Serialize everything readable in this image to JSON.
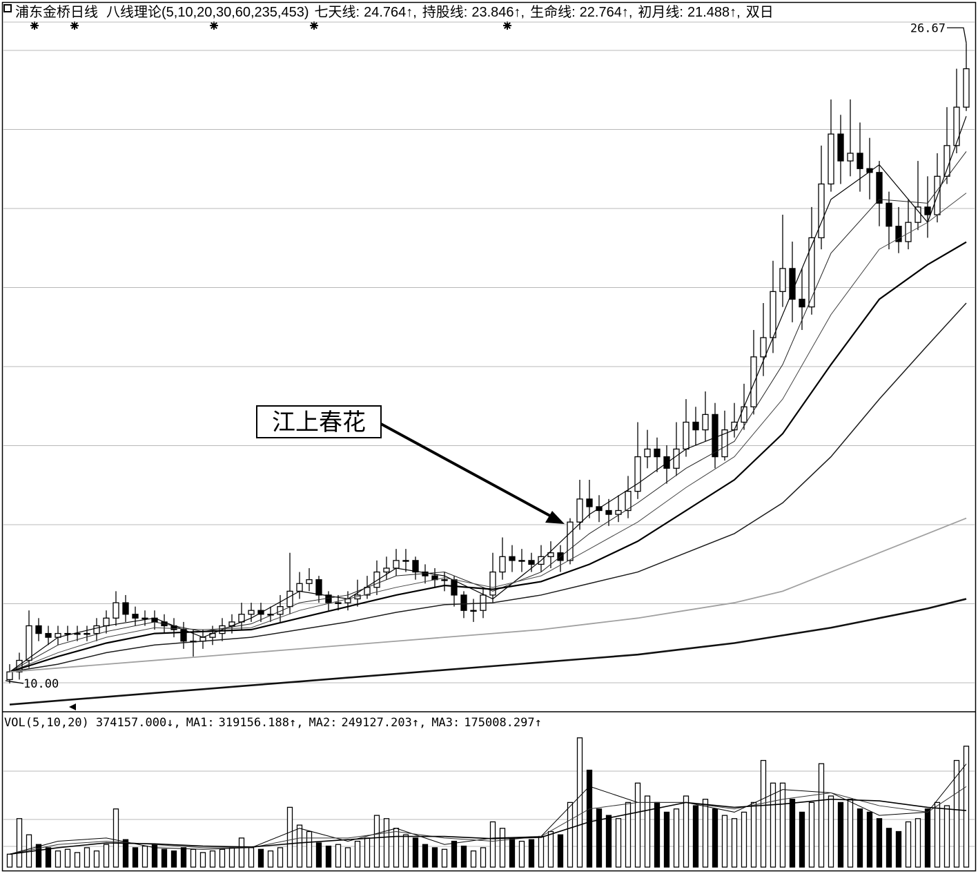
{
  "chart_data": {
    "type": "candlestick",
    "title": "浦东金桥日线",
    "indicator": "八线理论(5,10,20,30,60,235,453)",
    "item_separator": ",",
    "ylim": [
      9.28,
      27.07
    ],
    "grid": true,
    "candles": {
      "open": [
        10.1,
        10.3,
        10.6,
        11.5,
        11.3,
        11.2,
        11.3,
        11.3,
        11.3,
        11.3,
        11.5,
        11.7,
        12.1,
        11.8,
        11.7,
        11.7,
        11.6,
        11.5,
        11.4,
        11.1,
        11.1,
        11.2,
        11.3,
        11.5,
        11.6,
        11.8,
        11.9,
        11.8,
        11.8,
        12.0,
        12.4,
        12.6,
        12.7,
        12.3,
        12.1,
        12.1,
        12.2,
        12.3,
        12.5,
        12.9,
        13.0,
        13.2,
        13.2,
        12.9,
        12.8,
        12.7,
        12.7,
        12.3,
        11.9,
        11.9,
        12.3,
        12.9,
        13.3,
        13.2,
        13.2,
        13.1,
        13.3,
        13.4,
        13.2,
        14.2,
        14.8,
        14.6,
        14.5,
        14.4,
        14.5,
        15.0,
        15.9,
        16.1,
        15.9,
        15.6,
        16.1,
        16.8,
        16.6,
        17.0,
        15.9,
        16.6,
        16.8,
        17.2,
        18.5,
        19.0,
        20.2,
        20.8,
        20.0,
        19.8,
        21.6,
        23.0,
        24.3,
        23.6,
        23.8,
        23.4,
        23.3,
        22.5,
        21.9,
        21.5,
        22.0,
        22.4,
        22.2,
        23.2,
        24.0,
        25.0
      ],
      "high": [
        10.5,
        10.8,
        11.9,
        11.7,
        11.5,
        11.5,
        11.5,
        11.5,
        11.5,
        11.7,
        11.9,
        12.4,
        12.3,
        12.0,
        11.9,
        11.9,
        11.8,
        11.7,
        11.6,
        11.4,
        11.4,
        11.5,
        11.7,
        11.8,
        12.1,
        12.1,
        12.1,
        12.0,
        12.3,
        13.4,
        12.9,
        13.0,
        12.8,
        12.4,
        12.3,
        12.4,
        12.7,
        12.8,
        13.2,
        13.3,
        13.5,
        13.5,
        13.3,
        13.1,
        13.0,
        12.9,
        12.8,
        12.4,
        12.2,
        12.5,
        13.4,
        13.8,
        13.6,
        13.5,
        13.4,
        13.6,
        13.7,
        13.6,
        14.3,
        15.3,
        15.3,
        14.9,
        14.8,
        14.9,
        15.4,
        16.8,
        16.6,
        16.4,
        16.2,
        16.8,
        17.4,
        17.2,
        17.6,
        17.3,
        17.1,
        17.3,
        17.8,
        19.2,
        19.9,
        21.0,
        22.2,
        21.5,
        20.8,
        22.4,
        24.0,
        25.2,
        24.8,
        25.2,
        24.6,
        24.2,
        23.6,
        22.8,
        22.4,
        22.6,
        23.6,
        23.2,
        23.8,
        25.0,
        26.0,
        26.67
      ],
      "low": [
        10.0,
        10.1,
        10.4,
        11.1,
        11.0,
        11.0,
        11.1,
        11.1,
        11.1,
        11.1,
        11.3,
        11.5,
        11.6,
        11.5,
        11.5,
        11.4,
        11.3,
        11.2,
        10.9,
        10.7,
        10.9,
        11.0,
        11.1,
        11.3,
        11.4,
        11.6,
        11.6,
        11.6,
        11.6,
        11.8,
        12.2,
        12.4,
        12.1,
        11.9,
        11.9,
        11.9,
        12.0,
        12.2,
        12.3,
        12.7,
        12.8,
        12.9,
        12.7,
        12.6,
        12.5,
        12.4,
        12.0,
        11.7,
        11.6,
        11.7,
        12.1,
        12.7,
        12.9,
        12.9,
        12.9,
        12.9,
        13.0,
        12.9,
        13.1,
        14.0,
        14.3,
        14.2,
        14.1,
        14.2,
        14.3,
        14.8,
        15.6,
        15.5,
        15.2,
        15.4,
        15.9,
        16.2,
        16.3,
        15.6,
        15.8,
        16.4,
        16.6,
        17.0,
        18.0,
        18.6,
        19.8,
        19.4,
        19.2,
        19.6,
        21.3,
        22.8,
        23.0,
        23.2,
        22.8,
        22.6,
        21.9,
        21.3,
        21.2,
        21.3,
        21.8,
        21.6,
        22.0,
        23.0,
        23.8,
        24.9
      ],
      "close": [
        10.3,
        10.6,
        11.5,
        11.3,
        11.2,
        11.3,
        11.3,
        11.3,
        11.3,
        11.5,
        11.7,
        12.1,
        11.8,
        11.7,
        11.7,
        11.6,
        11.5,
        11.4,
        11.1,
        11.1,
        11.2,
        11.3,
        11.5,
        11.6,
        11.8,
        11.9,
        11.8,
        11.8,
        12.0,
        12.4,
        12.6,
        12.7,
        12.3,
        12.1,
        12.1,
        12.2,
        12.3,
        12.5,
        12.9,
        13.0,
        13.2,
        13.2,
        12.9,
        12.8,
        12.7,
        12.7,
        12.3,
        11.9,
        11.9,
        12.3,
        12.9,
        13.3,
        13.2,
        13.2,
        13.1,
        13.3,
        13.4,
        13.2,
        14.2,
        14.8,
        14.6,
        14.5,
        14.4,
        14.5,
        15.0,
        15.9,
        16.1,
        15.9,
        15.6,
        16.1,
        16.8,
        16.6,
        17.0,
        15.9,
        16.6,
        16.8,
        17.2,
        18.5,
        19.0,
        20.2,
        20.8,
        20.0,
        19.8,
        21.6,
        23.0,
        24.3,
        23.6,
        23.8,
        23.4,
        23.3,
        22.5,
        21.9,
        21.5,
        22.0,
        22.4,
        22.2,
        23.2,
        24.0,
        25.0,
        26.0
      ]
    },
    "ma_x": [
      0,
      5,
      10,
      15,
      20,
      25,
      30,
      35,
      40,
      45,
      50,
      55,
      60,
      65,
      70,
      75,
      80,
      85,
      90,
      95,
      99
    ],
    "series": [
      {
        "name": "七天线:",
        "trend": "↑",
        "color": "#000000",
        "values": [
          10.3,
          11.2,
          11.5,
          11.7,
          11.2,
          11.7,
          12.4,
          12.2,
          13.0,
          12.8,
          12.2,
          13.2,
          14.4,
          15.2,
          16.1,
          16.6,
          19.6,
          22.6,
          23.5,
          22.0,
          24.764
        ]
      },
      {
        "name": "持股线:",
        "trend": "↑",
        "color": "#222222",
        "values": [
          10.3,
          11.0,
          11.35,
          11.6,
          11.35,
          11.55,
          12.1,
          12.3,
          12.8,
          12.9,
          12.4,
          12.9,
          13.9,
          14.7,
          15.6,
          16.3,
          18.3,
          21.2,
          22.6,
          22.5,
          23.846
        ]
      },
      {
        "name": "生命线:",
        "trend": "↑",
        "color": "#444444",
        "values": [
          10.3,
          10.8,
          11.2,
          11.45,
          11.4,
          11.45,
          11.9,
          12.2,
          12.5,
          12.75,
          12.5,
          12.8,
          13.5,
          14.2,
          15.1,
          15.9,
          17.4,
          19.6,
          21.3,
          22.0,
          22.764
        ]
      },
      {
        "name": "初月线:",
        "trend": "↑",
        "color": "#000000",
        "values": [
          10.3,
          10.7,
          11.05,
          11.3,
          11.35,
          11.4,
          11.7,
          12.0,
          12.3,
          12.55,
          12.45,
          12.65,
          13.1,
          13.7,
          14.5,
          15.3,
          16.5,
          18.3,
          20.0,
          20.9,
          21.488
        ]
      },
      {
        "name": "双日",
        "color": "#1a1a1a",
        "values": [
          10.3,
          10.5,
          10.8,
          11.0,
          11.1,
          11.2,
          11.4,
          11.6,
          11.85,
          12.05,
          12.1,
          12.3,
          12.6,
          12.9,
          13.4,
          13.9,
          14.7,
          15.9,
          17.4,
          18.8,
          19.9
        ]
      },
      {
        "color": "#a0a0a0",
        "values": [
          10.3,
          10.4,
          10.5,
          10.6,
          10.7,
          10.8,
          10.9,
          11.0,
          11.1,
          11.2,
          11.3,
          11.4,
          11.55,
          11.7,
          11.9,
          12.1,
          12.4,
          12.9,
          13.4,
          13.9,
          14.3
        ]
      },
      {
        "color": "#111111",
        "values": [
          9.45,
          9.55,
          9.65,
          9.75,
          9.85,
          9.95,
          10.05,
          10.15,
          10.25,
          10.35,
          10.45,
          10.55,
          10.65,
          10.75,
          10.9,
          11.05,
          11.25,
          11.45,
          11.7,
          11.95,
          12.2
        ]
      }
    ],
    "markers": [
      {
        "value": 26.67,
        "label": "26.67"
      },
      {
        "value": 10.0,
        "label": "10.00"
      }
    ],
    "annotations": [
      {
        "text": "江上春花"
      }
    ],
    "volume": {
      "title": "VOL(5,10,20)",
      "ylim": [
        0,
        470000
      ],
      "header_value": {
        "value": 374157,
        "label": "374157.000"
      },
      "trend": "↓",
      "values": [
        40000,
        150000,
        100000,
        70000,
        60000,
        50000,
        55000,
        45000,
        60000,
        50000,
        70000,
        180000,
        85000,
        60000,
        65000,
        70000,
        55000,
        50000,
        60000,
        55000,
        45000,
        50000,
        55000,
        60000,
        90000,
        60000,
        55000,
        50000,
        60000,
        185000,
        130000,
        110000,
        75000,
        65000,
        70000,
        60000,
        80000,
        90000,
        160000,
        150000,
        120000,
        100000,
        90000,
        70000,
        60000,
        55000,
        80000,
        65000,
        50000,
        60000,
        140000,
        120000,
        90000,
        80000,
        85000,
        95000,
        110000,
        100000,
        200000,
        400000,
        300000,
        180000,
        160000,
        150000,
        200000,
        260000,
        220000,
        200000,
        170000,
        180000,
        220000,
        190000,
        210000,
        180000,
        160000,
        150000,
        170000,
        200000,
        330000,
        260000,
        260000,
        210000,
        170000,
        200000,
        320000,
        220000,
        200000,
        210000,
        180000,
        170000,
        150000,
        120000,
        110000,
        140000,
        150000,
        180000,
        200000,
        190000,
        330000,
        374157
      ],
      "series": [
        {
          "name": "MA1:",
          "trend": "↑",
          "color": "#000000",
          "values": [
            40000,
            80000,
            90000,
            60000,
            55000,
            60000,
            120000,
            80000,
            120000,
            70000,
            90000,
            95000,
            250000,
            200000,
            200000,
            170000,
            240000,
            230000,
            160000,
            170000,
            319156.188
          ]
        },
        {
          "name": "MA2:",
          "trend": "↑",
          "color": "#333333",
          "values": [
            40000,
            70000,
            80000,
            70000,
            60000,
            60000,
            90000,
            90000,
            110000,
            90000,
            80000,
            95000,
            180000,
            200000,
            200000,
            180000,
            210000,
            230000,
            190000,
            170000,
            249127.203
          ]
        },
        {
          "name": "MA3:",
          "trend": "↑",
          "color": "#000000",
          "values": [
            40000,
            60000,
            75000,
            72000,
            65000,
            62000,
            75000,
            85000,
            95000,
            95000,
            88000,
            92000,
            140000,
            170000,
            200000,
            185000,
            195000,
            210000,
            205000,
            185000,
            175008.297
          ]
        }
      ]
    }
  }
}
